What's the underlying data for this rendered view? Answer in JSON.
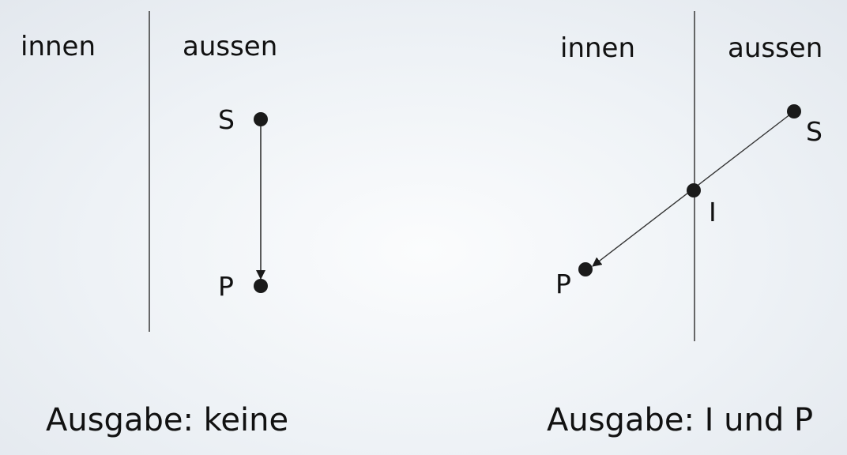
{
  "left_panel": {
    "region_inside": "innen",
    "region_outside": "aussen",
    "point_start": "S",
    "point_end": "P",
    "output": "Ausgabe: keine"
  },
  "right_panel": {
    "region_inside": "innen",
    "region_outside": "aussen",
    "point_start": "S",
    "point_intersection": "I",
    "point_end": "P",
    "output": "Ausgabe: I und P"
  },
  "colors": {
    "boundary": "#444444",
    "edge": "#333333",
    "point": "#1a1a1a",
    "text": "#111111"
  }
}
